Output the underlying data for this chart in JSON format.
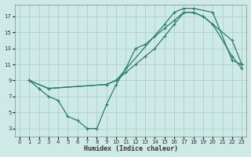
{
  "xlabel": "Humidex (Indice chaleur)",
  "bg_color": "#ceeae6",
  "grid_color": "#aecfcb",
  "line_color": "#2d7a6e",
  "xlim": [
    -0.5,
    23.5
  ],
  "ylim": [
    2,
    18.5
  ],
  "xticks": [
    0,
    1,
    2,
    3,
    4,
    5,
    6,
    7,
    8,
    9,
    10,
    11,
    12,
    13,
    14,
    15,
    16,
    17,
    18,
    19,
    20,
    21,
    22,
    23
  ],
  "yticks": [
    3,
    5,
    7,
    9,
    11,
    13,
    15,
    17
  ],
  "line1_x": [
    1,
    2,
    3,
    4,
    5,
    6,
    7,
    8,
    9,
    10,
    11,
    12,
    13,
    14,
    15,
    16,
    17,
    18,
    19,
    20,
    22,
    23
  ],
  "line1_y": [
    9.0,
    8.0,
    7.0,
    6.5,
    4.5,
    4.0,
    3.0,
    3.0,
    6.0,
    8.5,
    10.5,
    13.0,
    13.5,
    14.5,
    15.5,
    16.5,
    17.5,
    17.5,
    17.0,
    16.0,
    12.0,
    10.5
  ],
  "line2_x": [
    1,
    3,
    9,
    10,
    11,
    12,
    13,
    14,
    15,
    16,
    17,
    18,
    19,
    20,
    22,
    23
  ],
  "line2_y": [
    9.0,
    8.0,
    8.5,
    9.0,
    10.0,
    11.0,
    12.0,
    13.0,
    14.5,
    16.0,
    17.5,
    17.5,
    17.0,
    16.0,
    14.0,
    11.0
  ],
  "line3_x": [
    1,
    3,
    9,
    10,
    15,
    16,
    17,
    18,
    20,
    22,
    23
  ],
  "line3_y": [
    9.0,
    8.0,
    8.5,
    9.0,
    16.0,
    17.5,
    18.0,
    18.0,
    17.5,
    11.5,
    11.0
  ]
}
